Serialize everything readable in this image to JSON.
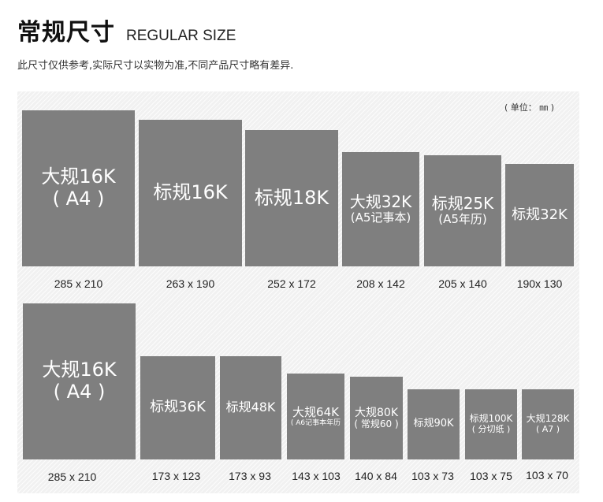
{
  "header": {
    "title": "常规尺寸",
    "title_en": "REGULAR SIZE",
    "subtitle": "此尺寸仅供参考,实际尺寸以实物为准,不同产品尺寸略有差异.",
    "unit": "( 单位： ㎜ )"
  },
  "colors": {
    "box": "#7f7f7f",
    "panel": "#f1f1f1",
    "text": "#222222"
  },
  "row1": [
    {
      "line1": "大规16K",
      "line2": "( A4 )",
      "size": "285 x 210"
    },
    {
      "line1": "标规16K",
      "line2": "",
      "size": "263 x 190"
    },
    {
      "line1": "标规18K",
      "line2": "",
      "size": "252 x 172"
    },
    {
      "line1": "大规32K",
      "line2": "(A5记事本)",
      "size": "208 x 142"
    },
    {
      "line1": "标规25K",
      "line2": "(A5年历)",
      "size": "205 x 140"
    },
    {
      "line1": "标规32K",
      "line2": "",
      "size": "190x 130"
    }
  ],
  "row2": [
    {
      "line1": "大规16K",
      "line2": "( A4 )",
      "size": "285 x 210"
    },
    {
      "line1": "标规36K",
      "line2": "",
      "size": "173 x 123"
    },
    {
      "line1": "标规48K",
      "line2": "",
      "size": "173 x 93"
    },
    {
      "line1": "大规64K",
      "line2": "( A6记事本年历",
      "size": "143 x 103"
    },
    {
      "line1": "大规80K",
      "line2": "( 常规60 )",
      "size": "140 x 84"
    },
    {
      "line1": "标规90K",
      "line2": "",
      "size": "103 x 73"
    },
    {
      "line1": "标规100K",
      "line2": "( 分切纸 )",
      "size": "103 x 75"
    },
    {
      "line1": "大规128K",
      "line2": "( A7 )",
      "size": "103 x 70"
    }
  ]
}
